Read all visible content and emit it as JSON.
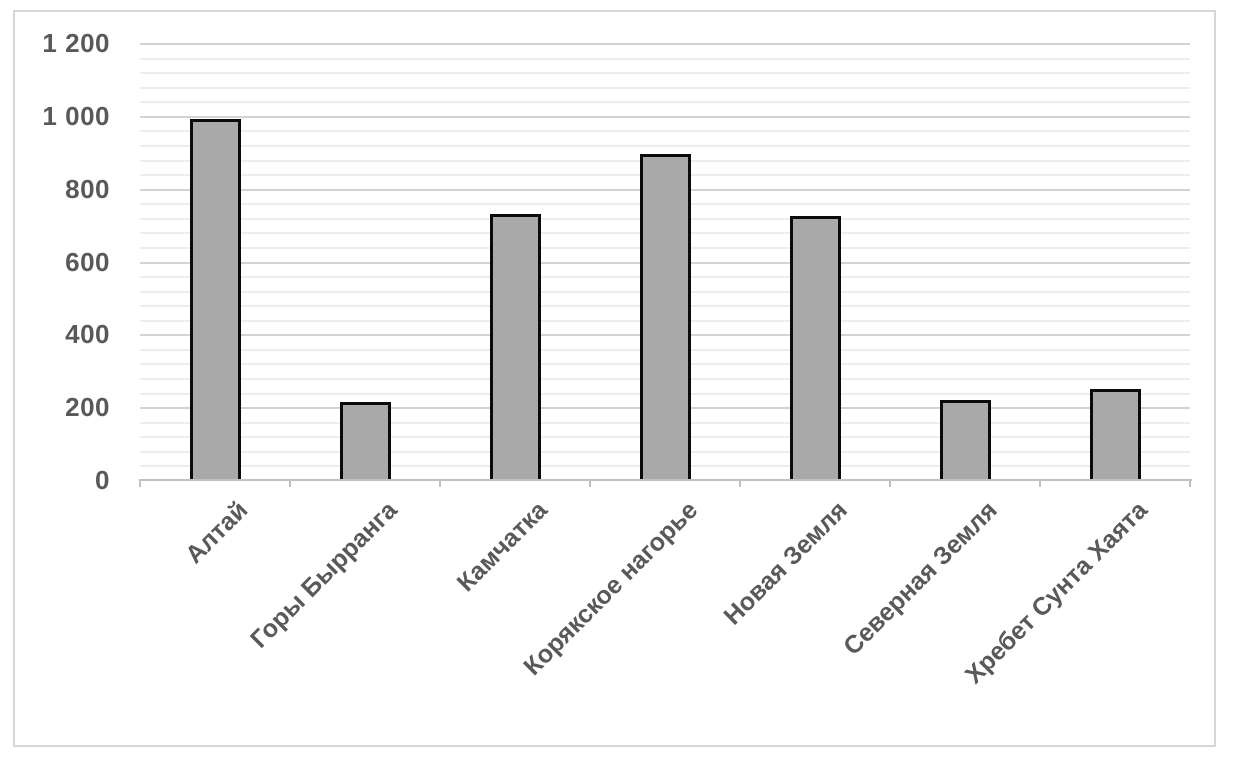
{
  "chart_data": {
    "type": "bar",
    "title": "",
    "categories": [
      "Алтай",
      "Горы Бырранга",
      "Камчатка",
      "Корякское нагорье",
      "Новая Земля",
      "Северная Земля",
      "Хребет Сунта Хаята"
    ],
    "values": [
      990,
      215,
      730,
      895,
      725,
      220,
      250
    ],
    "xlabel": "",
    "ylabel": "",
    "ylim": [
      0,
      1200
    ],
    "y_major_unit": 200,
    "y_minor_unit": 40,
    "y_tick_labels": [
      "0",
      "200",
      "400",
      "600",
      "800",
      "1 000",
      "1 200"
    ],
    "grid": "horizontal major + minor, on",
    "legend_position": "none",
    "category_label_rotation_deg": 45,
    "colors": {
      "bar_fill": "#a9a9a9",
      "bar_border": "#0b0b0b",
      "axis_text": "#595959",
      "major_gridline": "#d3d3d3",
      "minor_gridline": "#ededed",
      "axis_line": "#c1c1c1",
      "frame_border": "#d6d6d8",
      "background": "#ffffff"
    }
  }
}
